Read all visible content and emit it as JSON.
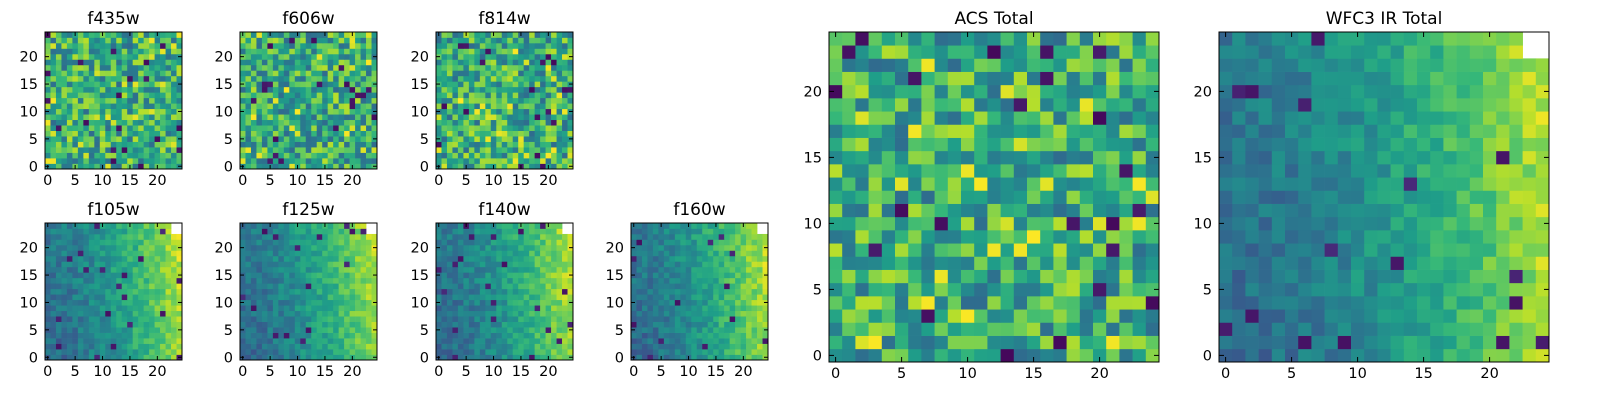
{
  "figure": {
    "description": "Per-band postage-stamp images and ACS/WFC3 IR totals"
  },
  "chart_data": [
    {
      "type": "heatmap",
      "title": "f435w",
      "xlim": [
        0,
        24
      ],
      "ylim": [
        0,
        24
      ],
      "xticks": [
        "0",
        "5",
        "10",
        "15",
        "20"
      ],
      "yticks": [
        "0",
        "5",
        "10",
        "15",
        "20"
      ],
      "field": "noise",
      "seed": 11,
      "colormap": "viridis",
      "blank_top_right": 0
    },
    {
      "type": "heatmap",
      "title": "f606w",
      "xlim": [
        0,
        24
      ],
      "ylim": [
        0,
        24
      ],
      "xticks": [
        "0",
        "5",
        "10",
        "15",
        "20"
      ],
      "yticks": [
        "0",
        "5",
        "10",
        "15",
        "20"
      ],
      "field": "noise",
      "seed": 23,
      "colormap": "viridis",
      "blank_top_right": 0
    },
    {
      "type": "heatmap",
      "title": "f814w",
      "xlim": [
        0,
        24
      ],
      "ylim": [
        0,
        24
      ],
      "xticks": [
        "0",
        "5",
        "10",
        "15",
        "20"
      ],
      "yticks": [
        "0",
        "5",
        "10",
        "15",
        "20"
      ],
      "field": "noise",
      "seed": 37,
      "colormap": "viridis",
      "blank_top_right": 0
    },
    {
      "type": "heatmap",
      "title": "f105w",
      "xlim": [
        0,
        24
      ],
      "ylim": [
        0,
        24
      ],
      "xticks": [
        "0",
        "5",
        "10",
        "15",
        "20"
      ],
      "yticks": [
        "0",
        "5",
        "10",
        "15",
        "20"
      ],
      "field": "ir",
      "seed": 41,
      "colormap": "viridis",
      "blank_top_right": 2
    },
    {
      "type": "heatmap",
      "title": "f125w",
      "xlim": [
        0,
        24
      ],
      "ylim": [
        0,
        24
      ],
      "xticks": [
        "0",
        "5",
        "10",
        "15",
        "20"
      ],
      "yticks": [
        "0",
        "5",
        "10",
        "15",
        "20"
      ],
      "field": "ir",
      "seed": 53,
      "colormap": "viridis",
      "blank_top_right": 2
    },
    {
      "type": "heatmap",
      "title": "f140w",
      "xlim": [
        0,
        24
      ],
      "ylim": [
        0,
        24
      ],
      "xticks": [
        "0",
        "5",
        "10",
        "15",
        "20"
      ],
      "yticks": [
        "0",
        "5",
        "10",
        "15",
        "20"
      ],
      "field": "ir",
      "seed": 67,
      "colormap": "viridis",
      "blank_top_right": 2
    },
    {
      "type": "heatmap",
      "title": "f160w",
      "xlim": [
        0,
        24
      ],
      "ylim": [
        0,
        24
      ],
      "xticks": [
        "0",
        "5",
        "10",
        "15",
        "20"
      ],
      "yticks": [
        "0",
        "5",
        "10",
        "15",
        "20"
      ],
      "field": "ir",
      "seed": 79,
      "colormap": "viridis",
      "blank_top_right": 2
    },
    {
      "type": "heatmap",
      "title": "ACS Total",
      "xlim": [
        0,
        24
      ],
      "ylim": [
        0,
        24
      ],
      "xticks": [
        "0",
        "5",
        "10",
        "15",
        "20"
      ],
      "yticks": [
        "0",
        "5",
        "10",
        "15",
        "20"
      ],
      "field": "noise",
      "seed": 97,
      "colormap": "viridis",
      "blank_top_right": 0
    },
    {
      "type": "heatmap",
      "title": "WFC3 IR Total",
      "xlim": [
        0,
        24
      ],
      "ylim": [
        0,
        24
      ],
      "xticks": [
        "0",
        "5",
        "10",
        "15",
        "20"
      ],
      "yticks": [
        "0",
        "5",
        "10",
        "15",
        "20"
      ],
      "field": "ir",
      "seed": 113,
      "colormap": "viridis",
      "blank_top_right": 2
    }
  ]
}
